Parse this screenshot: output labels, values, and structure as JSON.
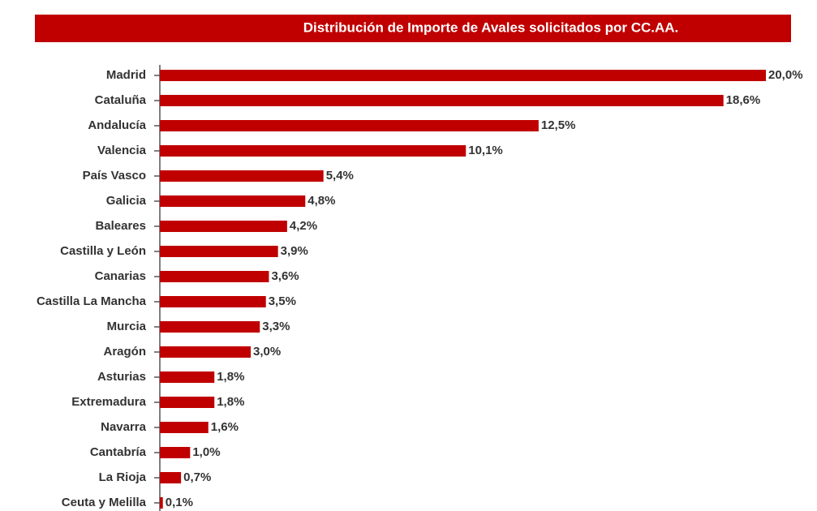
{
  "chart_data": {
    "type": "bar",
    "orientation": "horizontal",
    "title": "Distribución de  Importe de  Avales  solicitados por CC.AA.",
    "categories": [
      "Madrid",
      "Cataluña",
      "Andalucía",
      "Valencia",
      "País Vasco",
      "Galicia",
      "Baleares",
      "Castilla y León",
      "Canarias",
      "Castilla La Mancha",
      "Murcia",
      "Aragón",
      "Asturias",
      "Extremadura",
      "Navarra",
      "Cantabría",
      "La Rioja",
      "Ceuta y Melilla"
    ],
    "values": [
      20.0,
      18.6,
      12.5,
      10.1,
      5.4,
      4.8,
      4.2,
      3.9,
      3.6,
      3.5,
      3.3,
      3.0,
      1.8,
      1.8,
      1.6,
      1.0,
      0.7,
      0.1
    ],
    "value_labels": [
      "20,0%",
      "18,6%",
      "12,5%",
      "10,1%",
      "5,4%",
      "4,8%",
      "4,2%",
      "3,9%",
      "3,6%",
      "3,5%",
      "3,3%",
      "3,0%",
      "1,8%",
      "1,8%",
      "1,6%",
      "1,0%",
      "0,7%",
      "0,1%"
    ],
    "color": "#c00000"
  }
}
